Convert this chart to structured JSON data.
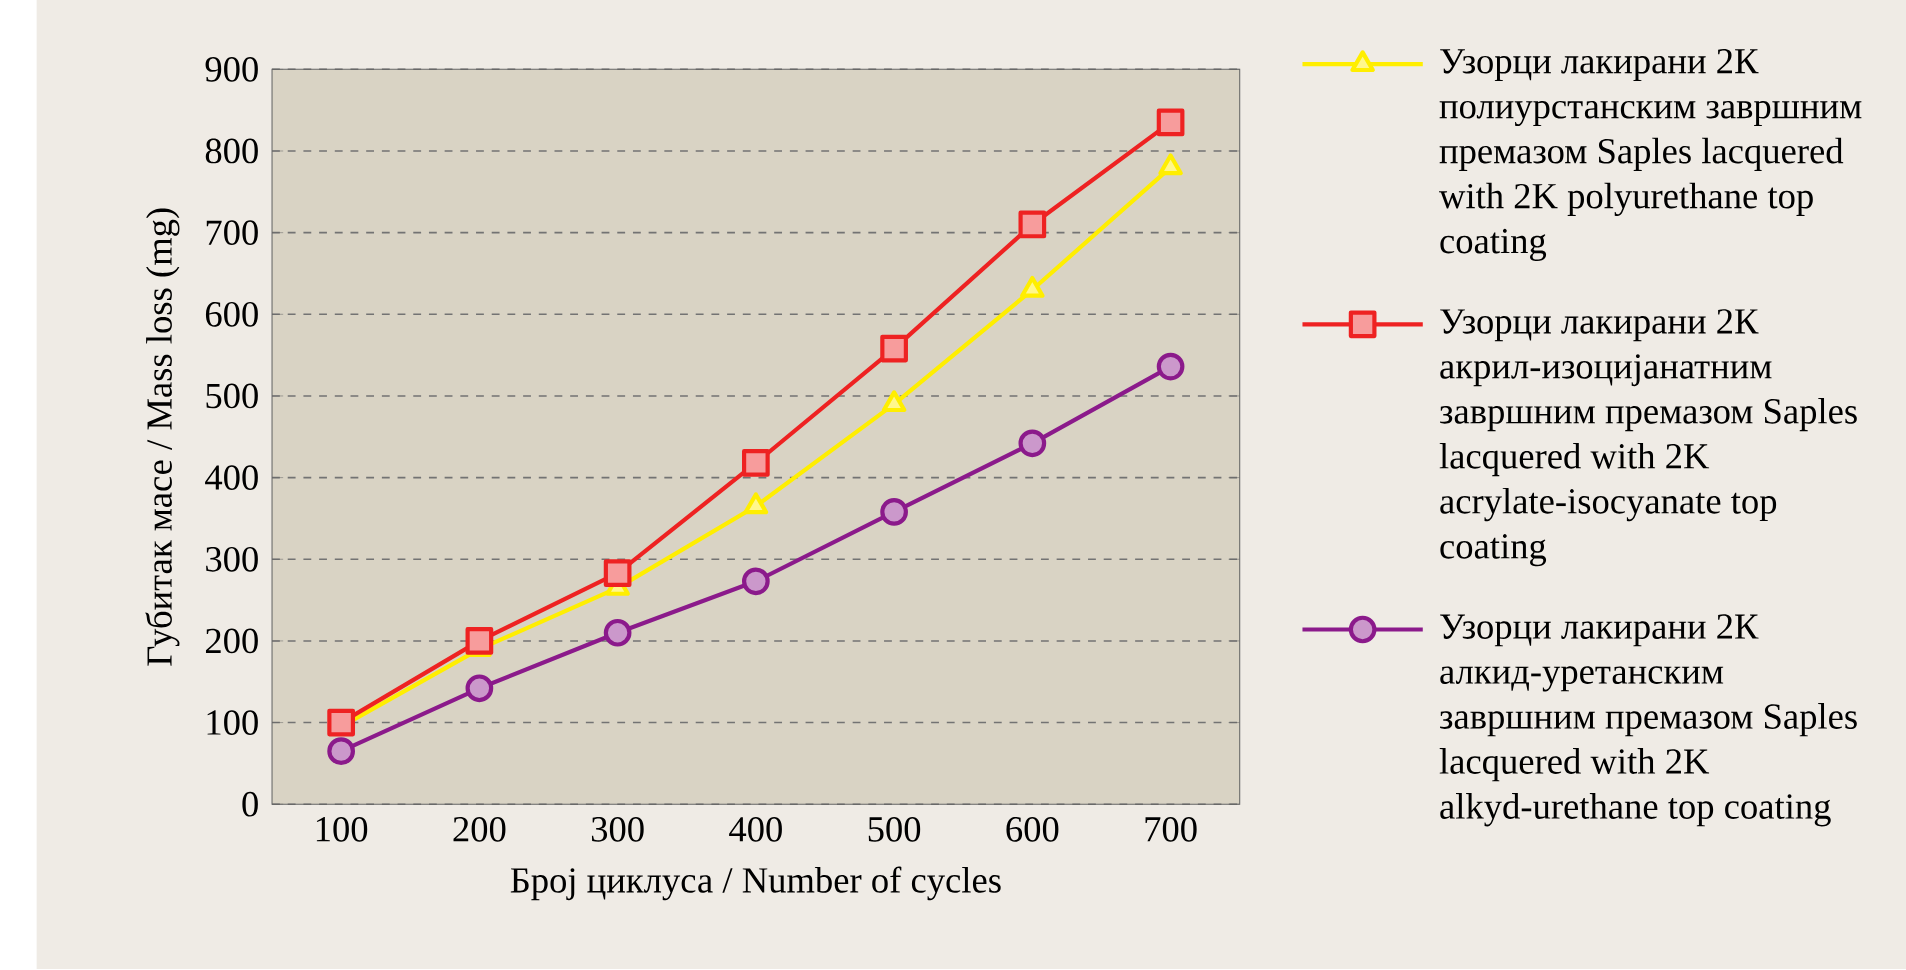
{
  "chart_data": {
    "type": "line",
    "xlabel": "Број циклуса / Number of cycles",
    "ylabel": "Губитак масе / Mass loss (mg)",
    "categories": [
      "100",
      "200",
      "300",
      "400",
      "500",
      "600",
      "700"
    ],
    "ylim": [
      0,
      900
    ],
    "yticks": [
      0,
      100,
      200,
      300,
      400,
      500,
      600,
      700,
      800,
      900
    ],
    "grid": "y",
    "legend": "right",
    "line_style": "solid",
    "series": [
      {
        "name": "Узорци лакирани 2К полиурстанским завршним премазом Saples lacquered with 2K polyurethane top coating",
        "color": "#ffee00",
        "marker": "triangle",
        "values": [
          95,
          190,
          265,
          365,
          490,
          630,
          780
        ]
      },
      {
        "name": "Узорци лакирани 2К акрил-изоцијанатним завршним премазом Saples lacquered with 2K acrylate-isocyanate top coating",
        "color": "#ee2222",
        "marker": "square",
        "values": [
          100,
          200,
          283,
          418,
          558,
          710,
          835
        ]
      },
      {
        "name": "Узорци лакирани 2К алкид-уретанским завршним премазом Saples lacquered with 2K alkyd-urethane top coating",
        "color": "#8b1a8b",
        "marker": "circle",
        "values": [
          65,
          142,
          210,
          273,
          358,
          442,
          536
        ]
      }
    ]
  }
}
